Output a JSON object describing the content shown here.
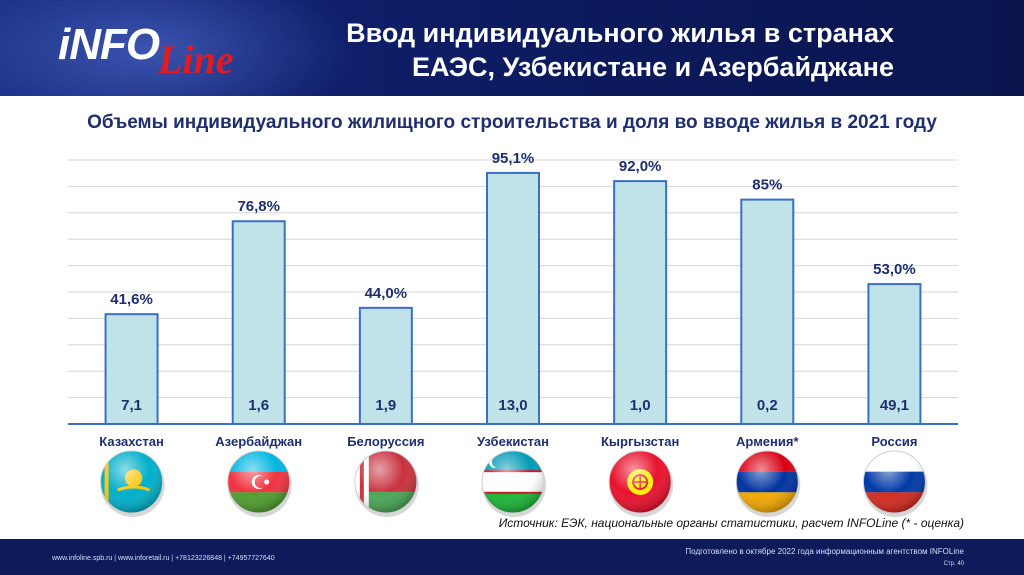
{
  "header": {
    "logo_main": "iNFO",
    "logo_sub": "Line",
    "title_line1": "Ввод индивидуального жилья в странах",
    "title_line2": "ЕАЭС, Узбекистане и Азербайджане",
    "bg_color": "#0c1a5c"
  },
  "chart_data": {
    "type": "bar",
    "title": "Объемы индивидуального жилищного строительства и доля во вводе жилья в 2021 году",
    "categories": [
      "Казахстан",
      "Азербайджан",
      "Белоруссия",
      "Узбекистан",
      "Кыргызстан",
      "Армения*",
      "Россия"
    ],
    "series": [
      {
        "values": [
          41.6,
          76.8,
          44.0,
          95.1,
          92.0,
          85.0,
          53.0
        ],
        "value_labels": [
          "41,6%",
          "76,8%",
          "44,0%",
          "95,1%",
          "92,0%",
          "85%",
          "53,0%"
        ]
      },
      {
        "values": [
          7.1,
          1.6,
          1.9,
          13.0,
          1.0,
          0.2,
          49.1
        ],
        "value_labels": [
          "7,1",
          "1,6",
          "1,9",
          "13,0",
          "1,0",
          "0,2",
          "49,1"
        ]
      }
    ],
    "ylim": [
      0,
      100
    ],
    "grid": true,
    "bar_fill": "#bfe3e8",
    "bar_stroke": "#3b6fc4",
    "flags": [
      "kazakhstan-flag-icon",
      "azerbaijan-flag-icon",
      "belarus-flag-icon",
      "uzbekistan-flag-icon",
      "kyrgyzstan-flag-icon",
      "armenia-flag-icon",
      "russia-flag-icon"
    ]
  },
  "source": "Источник: ЕЭК, национальные органы статистики, расчет INFOLine (* - оценка)",
  "footer": {
    "contacts": "www.infoline.spb.ru | www.inforetail.ru | +78123226848 | +74957727640",
    "prepared": "Подготовлено в октябре 2022 года информационным агентством INFOLine",
    "page": "Стр. 40"
  }
}
